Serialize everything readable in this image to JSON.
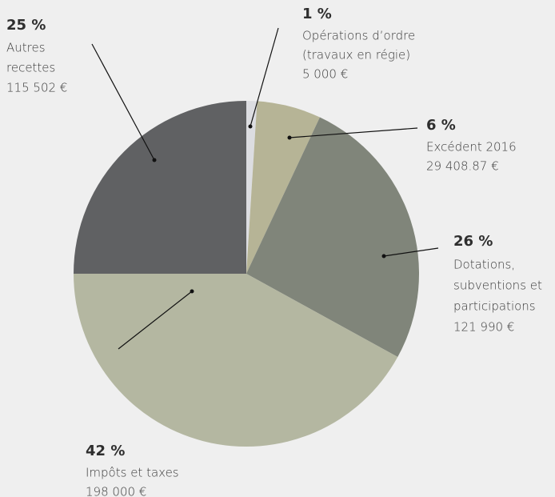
{
  "chart_data": {
    "type": "pie",
    "categories": [
      [
        "Opérations d’ordre",
        "(travaux en régie)"
      ],
      [
        "Excédent 2016"
      ],
      [
        "Dotations,",
        "subventions et",
        "participations"
      ],
      [
        "Impôts et taxes"
      ],
      [
        "Autres",
        "recettes"
      ]
    ],
    "values": [
      1,
      6,
      26,
      42,
      25
    ],
    "value_labels": [
      "1 %",
      "6 %",
      "26 %",
      "42 %",
      "25 %"
    ],
    "amount_labels": [
      "5 000 €",
      "29 408.87 €",
      "121 990 €",
      "198 000 €",
      "115 502 €"
    ],
    "colors": [
      "#dcdde1",
      "#b6b496",
      "#80857a",
      "#b4b7a1",
      "#606163"
    ]
  }
}
